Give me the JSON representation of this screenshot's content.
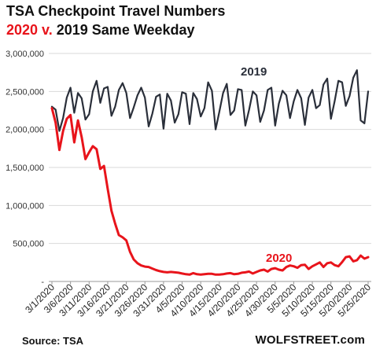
{
  "chart_data": {
    "type": "line",
    "title_line1": "TSA Checkpoint Travel Numbers",
    "title_line2_part1": "2020 v.",
    "title_line2_part2": "2019 Same Weekday",
    "xlabel": "",
    "ylabel": "",
    "ylim": [
      0,
      3000000
    ],
    "yticks": [
      0,
      500000,
      1000000,
      1500000,
      2000000,
      2500000,
      3000000
    ],
    "ytick_labels": [
      "-",
      "500,000",
      "1,000,000",
      "1,500,000",
      "2,000,000",
      "2,500,000",
      "3,000,000"
    ],
    "grid": "horizontal",
    "x_tick_labels": [
      "3/1/2020",
      "3/6/2020",
      "3/11/2020",
      "3/16/2020",
      "3/21/2020",
      "3/26/2020",
      "3/31/2020",
      "4/5/2020",
      "4/10/2020",
      "4/15/2020",
      "4/20/2020",
      "4/25/2020",
      "4/30/2020",
      "5/5/2020",
      "5/10/2020",
      "5/15/2020",
      "5/20/2020",
      "5/25/2020"
    ],
    "series": [
      {
        "name": "2019",
        "color": "#2a2f3a",
        "values": [
          2300000,
          2260000,
          1980000,
          2150000,
          2420000,
          2550000,
          2220000,
          2480000,
          2410000,
          2130000,
          2200000,
          2500000,
          2640000,
          2350000,
          2540000,
          2560000,
          2180000,
          2300000,
          2520000,
          2610000,
          2480000,
          2150000,
          2290000,
          2450000,
          2550000,
          2420000,
          2040000,
          2210000,
          2430000,
          2460000,
          2010000,
          2470000,
          2380000,
          2090000,
          2200000,
          2490000,
          2470000,
          2070000,
          2480000,
          2400000,
          2170000,
          2280000,
          2620000,
          2510000,
          2000000,
          2230000,
          2480000,
          2600000,
          2190000,
          2250000,
          2530000,
          2520000,
          2050000,
          2260000,
          2500000,
          2450000,
          2100000,
          2250000,
          2520000,
          2550000,
          2050000,
          2340000,
          2510000,
          2450000,
          2150000,
          2370000,
          2520000,
          2410000,
          2060000,
          2420000,
          2520000,
          2280000,
          2320000,
          2590000,
          2670000,
          2140000,
          2370000,
          2640000,
          2620000,
          2310000,
          2440000,
          2680000,
          2780000,
          2120000,
          2080000,
          2500000
        ]
      },
      {
        "name": "2020",
        "color": "#e8141b",
        "values": [
          2280000,
          2090000,
          1730000,
          1980000,
          2140000,
          2190000,
          1830000,
          2120000,
          1900000,
          1610000,
          1700000,
          1780000,
          1740000,
          1480000,
          1520000,
          1220000,
          930000,
          760000,
          610000,
          580000,
          540000,
          390000,
          290000,
          240000,
          210000,
          195000,
          190000,
          170000,
          150000,
          135000,
          125000,
          120000,
          125000,
          120000,
          115000,
          105000,
          95000,
          90000,
          110000,
          95000,
          90000,
          95000,
          100000,
          100000,
          90000,
          90000,
          95000,
          105000,
          110000,
          95000,
          100000,
          115000,
          120000,
          130000,
          105000,
          125000,
          145000,
          155000,
          130000,
          165000,
          175000,
          155000,
          145000,
          190000,
          210000,
          200000,
          180000,
          215000,
          220000,
          165000,
          200000,
          225000,
          250000,
          190000,
          240000,
          250000,
          215000,
          200000,
          255000,
          320000,
          330000,
          265000,
          280000,
          340000,
          300000,
          320000
        ]
      }
    ],
    "series_label_2019": "2019",
    "series_label_2020": "2020"
  },
  "footer": {
    "source": "Source: TSA",
    "brand": "WOLFSTREET.com"
  }
}
